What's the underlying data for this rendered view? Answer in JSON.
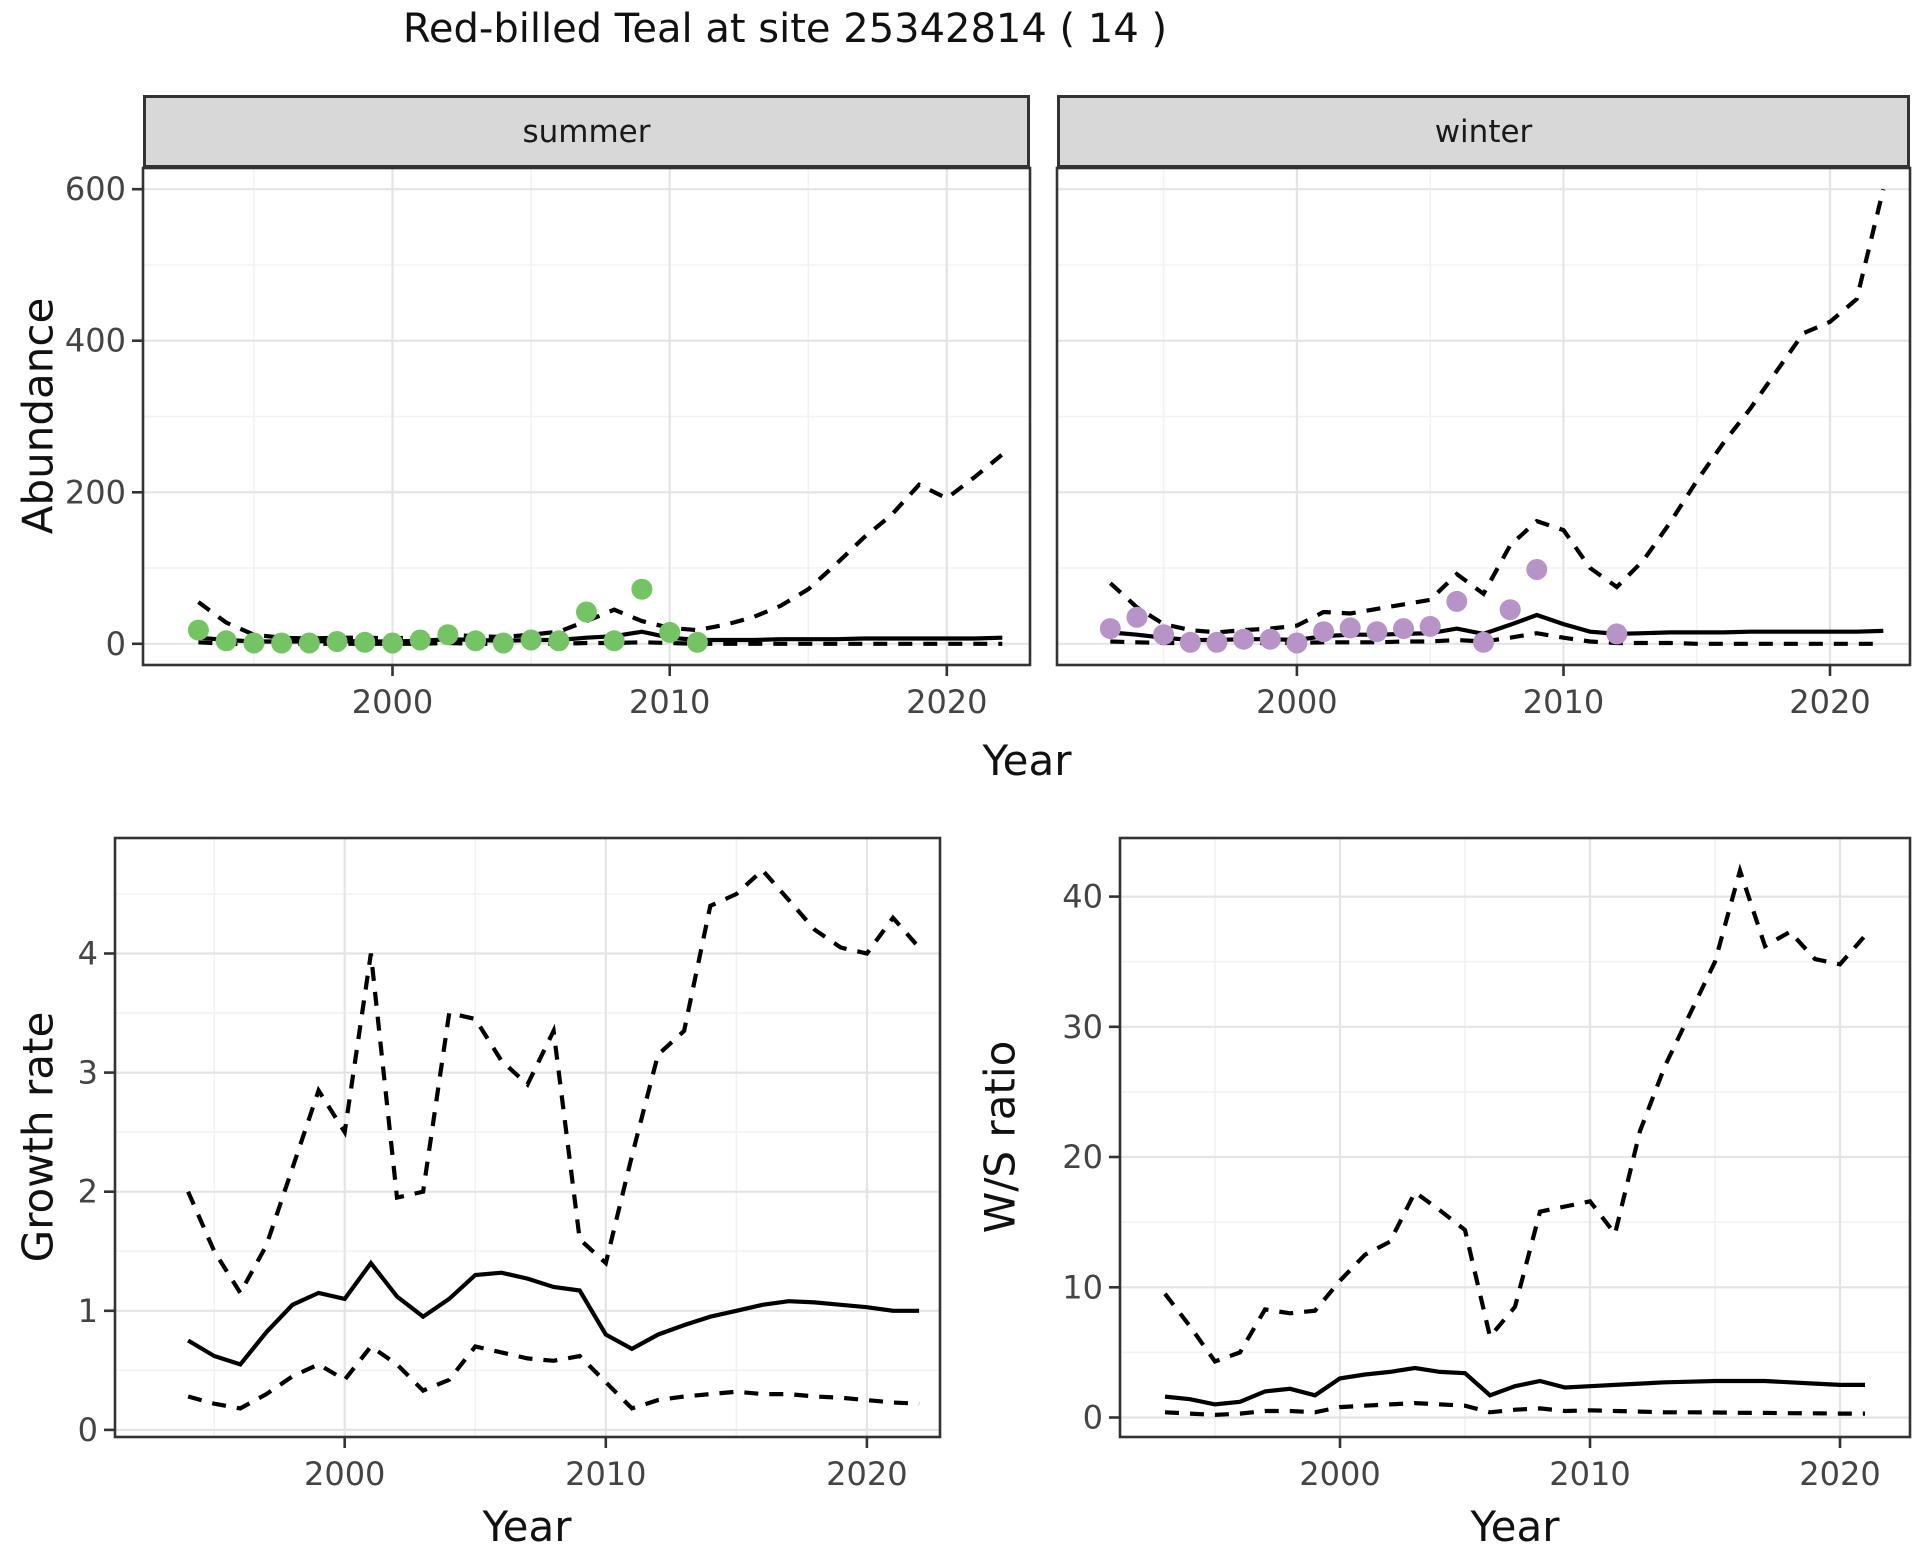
{
  "title": "Red-billed Teal at site 25342814 ( 14 )",
  "axes": {
    "top_y_label": "Abundance",
    "top_x_label": "Year",
    "bottom_left_y_label": "Growth rate",
    "bottom_left_x_label": "Year",
    "bottom_right_y_label": "W/S ratio",
    "bottom_right_x_label": "Year"
  },
  "facets": {
    "summer": "summer",
    "winter": "winter"
  },
  "colors": {
    "summer_points": "#74c365",
    "winter_points": "#b893c8",
    "line": "#000000",
    "grid_major": "#e4e4e4",
    "grid_minor": "#f2f2f2",
    "panel_border": "#333333",
    "strip_bg": "#d8d8d8",
    "tick_text": "#444444",
    "text": "#111111"
  },
  "chart_data": [
    {
      "id": "summer-abundance",
      "type": "line",
      "facet_label": "summer",
      "xlabel": "Year",
      "ylabel": "Abundance",
      "xlim": [
        1991,
        2023
      ],
      "ylim": [
        -28,
        628
      ],
      "x_ticks": [
        {
          "v": 2000,
          "label": "2000"
        },
        {
          "v": 2010,
          "label": "2010"
        },
        {
          "v": 2020,
          "label": "2020"
        }
      ],
      "x_minor": [
        1995,
        2005,
        2015
      ],
      "y_ticks": [
        {
          "v": 0,
          "label": "0"
        },
        {
          "v": 200,
          "label": "200"
        },
        {
          "v": 400,
          "label": "400"
        },
        {
          "v": 600,
          "label": "600"
        }
      ],
      "y_minor": [
        100,
        300,
        500
      ],
      "series": [
        {
          "name": "upper-ci",
          "kind": "line",
          "dash": true,
          "x0": 1993,
          "y": [
            55,
            28,
            12,
            8,
            7,
            8,
            8,
            7,
            9,
            12,
            10,
            9,
            12,
            16,
            30,
            45,
            30,
            21,
            18,
            25,
            35,
            50,
            72,
            105,
            140,
            170,
            210,
            192,
            220,
            250
          ]
        },
        {
          "name": "lower-ci",
          "kind": "line",
          "dash": true,
          "x0": 1993,
          "y": [
            2,
            0,
            0,
            0,
            0,
            0,
            0,
            0,
            0,
            1,
            0,
            0,
            0,
            0,
            1,
            1,
            2,
            1,
            0,
            0,
            0,
            0,
            0,
            0,
            0,
            0,
            0,
            0,
            0,
            0
          ]
        },
        {
          "name": "mean",
          "kind": "line",
          "dash": false,
          "x0": 1993,
          "y": [
            8,
            5,
            3,
            3,
            3,
            4,
            3,
            3,
            4,
            6,
            5,
            4,
            5,
            5,
            8,
            10,
            16,
            8,
            5,
            5,
            5,
            6,
            6,
            6,
            7,
            7,
            7,
            7,
            7,
            8
          ]
        },
        {
          "name": "observed-counts",
          "kind": "points",
          "color_key": "summer_points",
          "x": [
            1993,
            1994,
            1995,
            1996,
            1997,
            1998,
            1999,
            2000,
            2001,
            2002,
            2003,
            2004,
            2005,
            2006,
            2007,
            2008,
            2009,
            2010,
            2011
          ],
          "y": [
            18,
            4,
            1,
            1,
            1,
            3,
            2,
            1,
            5,
            12,
            4,
            1,
            5,
            4,
            42,
            4,
            72,
            15,
            2
          ]
        }
      ]
    },
    {
      "id": "winter-abundance",
      "type": "line",
      "facet_label": "winter",
      "xlabel": "Year",
      "ylabel": "Abundance",
      "xlim": [
        1991,
        2023
      ],
      "ylim": [
        -28,
        628
      ],
      "x_ticks": [
        {
          "v": 2000,
          "label": "2000"
        },
        {
          "v": 2010,
          "label": "2010"
        },
        {
          "v": 2020,
          "label": "2020"
        }
      ],
      "x_minor": [
        1995,
        2005,
        2015
      ],
      "y_ticks": [
        {
          "v": 0,
          "label": "0"
        },
        {
          "v": 200,
          "label": "200"
        },
        {
          "v": 400,
          "label": "400"
        },
        {
          "v": 600,
          "label": "600"
        }
      ],
      "y_minor": [
        100,
        300,
        500
      ],
      "series": [
        {
          "name": "upper-ci",
          "kind": "line",
          "dash": true,
          "x0": 1993,
          "y": [
            80,
            48,
            26,
            18,
            15,
            18,
            20,
            24,
            42,
            40,
            46,
            52,
            58,
            92,
            66,
            130,
            162,
            150,
            100,
            75,
            110,
            160,
            215,
            265,
            310,
            360,
            410,
            425,
            455,
            600
          ]
        },
        {
          "name": "lower-ci",
          "kind": "line",
          "dash": true,
          "x0": 1993,
          "y": [
            3,
            2,
            1,
            1,
            1,
            1,
            1,
            1,
            2,
            2,
            2,
            3,
            3,
            5,
            3,
            8,
            14,
            8,
            3,
            1,
            1,
            1,
            0,
            0,
            0,
            0,
            0,
            0,
            0,
            0
          ]
        },
        {
          "name": "mean",
          "kind": "line",
          "dash": false,
          "x0": 1993,
          "y": [
            15,
            12,
            8,
            5,
            5,
            6,
            6,
            5,
            10,
            12,
            12,
            13,
            14,
            20,
            13,
            25,
            38,
            26,
            16,
            13,
            14,
            15,
            15,
            15,
            16,
            16,
            16,
            16,
            16,
            17
          ]
        },
        {
          "name": "observed-counts",
          "kind": "points",
          "color_key": "winter_points",
          "x": [
            1993,
            1994,
            1995,
            1996,
            1997,
            1998,
            1999,
            2000,
            2001,
            2002,
            2003,
            2004,
            2005,
            2006,
            2007,
            2008,
            2009,
            2012
          ],
          "y": [
            20,
            35,
            12,
            2,
            2,
            6,
            6,
            1,
            16,
            21,
            16,
            20,
            23,
            56,
            2,
            45,
            98,
            13
          ]
        }
      ]
    },
    {
      "id": "growth-rate",
      "type": "line",
      "facet_label": "",
      "xlabel": "Year",
      "ylabel": "Growth rate",
      "xlim": [
        1991.2,
        2022.8
      ],
      "ylim": [
        -0.06,
        4.97
      ],
      "x_ticks": [
        {
          "v": 2000,
          "label": "2000"
        },
        {
          "v": 2010,
          "label": "2010"
        },
        {
          "v": 2020,
          "label": "2020"
        }
      ],
      "x_minor": [
        1995,
        2005,
        2015
      ],
      "y_ticks": [
        {
          "v": 0,
          "label": "0"
        },
        {
          "v": 1,
          "label": "1"
        },
        {
          "v": 2,
          "label": "2"
        },
        {
          "v": 3,
          "label": "3"
        },
        {
          "v": 4,
          "label": "4"
        }
      ],
      "y_minor": [
        0.5,
        1.5,
        2.5,
        3.5,
        4.5
      ],
      "series": [
        {
          "name": "upper-ci",
          "kind": "line",
          "dash": true,
          "x0": 1994,
          "y": [
            2.0,
            1.5,
            1.15,
            1.55,
            2.2,
            2.85,
            2.5,
            4.0,
            1.95,
            2.0,
            3.5,
            3.45,
            3.1,
            2.9,
            3.35,
            1.6,
            1.4,
            2.3,
            3.15,
            3.35,
            4.4,
            4.5,
            4.7,
            4.45,
            4.2,
            4.05,
            4.0,
            4.3,
            4.05
          ]
        },
        {
          "name": "lower-ci",
          "kind": "line",
          "dash": true,
          "x0": 1994,
          "y": [
            0.28,
            0.22,
            0.18,
            0.3,
            0.45,
            0.55,
            0.42,
            0.7,
            0.55,
            0.33,
            0.42,
            0.7,
            0.65,
            0.6,
            0.58,
            0.62,
            0.4,
            0.18,
            0.25,
            0.28,
            0.3,
            0.32,
            0.3,
            0.3,
            0.28,
            0.27,
            0.25,
            0.23,
            0.22
          ]
        },
        {
          "name": "mean",
          "kind": "line",
          "dash": false,
          "x0": 1994,
          "y": [
            0.75,
            0.62,
            0.55,
            0.82,
            1.05,
            1.15,
            1.1,
            1.4,
            1.12,
            0.95,
            1.1,
            1.3,
            1.32,
            1.27,
            1.2,
            1.17,
            0.8,
            0.68,
            0.8,
            0.88,
            0.95,
            1.0,
            1.05,
            1.08,
            1.07,
            1.05,
            1.03,
            1.0,
            1.0
          ]
        }
      ]
    },
    {
      "id": "ws-ratio",
      "type": "line",
      "facet_label": "",
      "xlabel": "Year",
      "ylabel": "W/S ratio",
      "xlim": [
        1991.2,
        2022.8
      ],
      "ylim": [
        -1.5,
        44.5
      ],
      "x_ticks": [
        {
          "v": 2000,
          "label": "2000"
        },
        {
          "v": 2010,
          "label": "2010"
        },
        {
          "v": 2020,
          "label": "2020"
        }
      ],
      "x_minor": [
        1995,
        2005,
        2015
      ],
      "y_ticks": [
        {
          "v": 0,
          "label": "0"
        },
        {
          "v": 10,
          "label": "10"
        },
        {
          "v": 20,
          "label": "20"
        },
        {
          "v": 30,
          "label": "30"
        },
        {
          "v": 40,
          "label": "40"
        }
      ],
      "y_minor": [
        5,
        15,
        25,
        35
      ],
      "series": [
        {
          "name": "upper-ci",
          "kind": "line",
          "dash": true,
          "x0": 1993,
          "y": [
            9.5,
            7.0,
            4.3,
            5.0,
            8.3,
            8.0,
            8.2,
            10.5,
            12.5,
            13.5,
            17.3,
            15.9,
            14.4,
            6.2,
            8.5,
            15.8,
            16.2,
            16.6,
            14.1,
            22,
            27,
            31,
            35,
            42,
            36.2,
            37.3,
            35.2,
            34.8,
            37
          ]
        },
        {
          "name": "lower-ci",
          "kind": "line",
          "dash": true,
          "x0": 1993,
          "y": [
            0.4,
            0.3,
            0.2,
            0.3,
            0.5,
            0.5,
            0.4,
            0.8,
            0.9,
            1.0,
            1.1,
            1.0,
            0.9,
            0.4,
            0.6,
            0.7,
            0.5,
            0.55,
            0.5,
            0.45,
            0.4,
            0.4,
            0.38,
            0.36,
            0.35,
            0.33,
            0.32,
            0.3,
            0.3
          ]
        },
        {
          "name": "mean",
          "kind": "line",
          "dash": false,
          "x0": 1993,
          "y": [
            1.6,
            1.4,
            1.0,
            1.2,
            2.0,
            2.2,
            1.7,
            3.0,
            3.3,
            3.5,
            3.8,
            3.5,
            3.4,
            1.7,
            2.4,
            2.8,
            2.3,
            2.4,
            2.5,
            2.6,
            2.7,
            2.75,
            2.8,
            2.8,
            2.8,
            2.7,
            2.6,
            2.5,
            2.5
          ]
        }
      ]
    }
  ]
}
